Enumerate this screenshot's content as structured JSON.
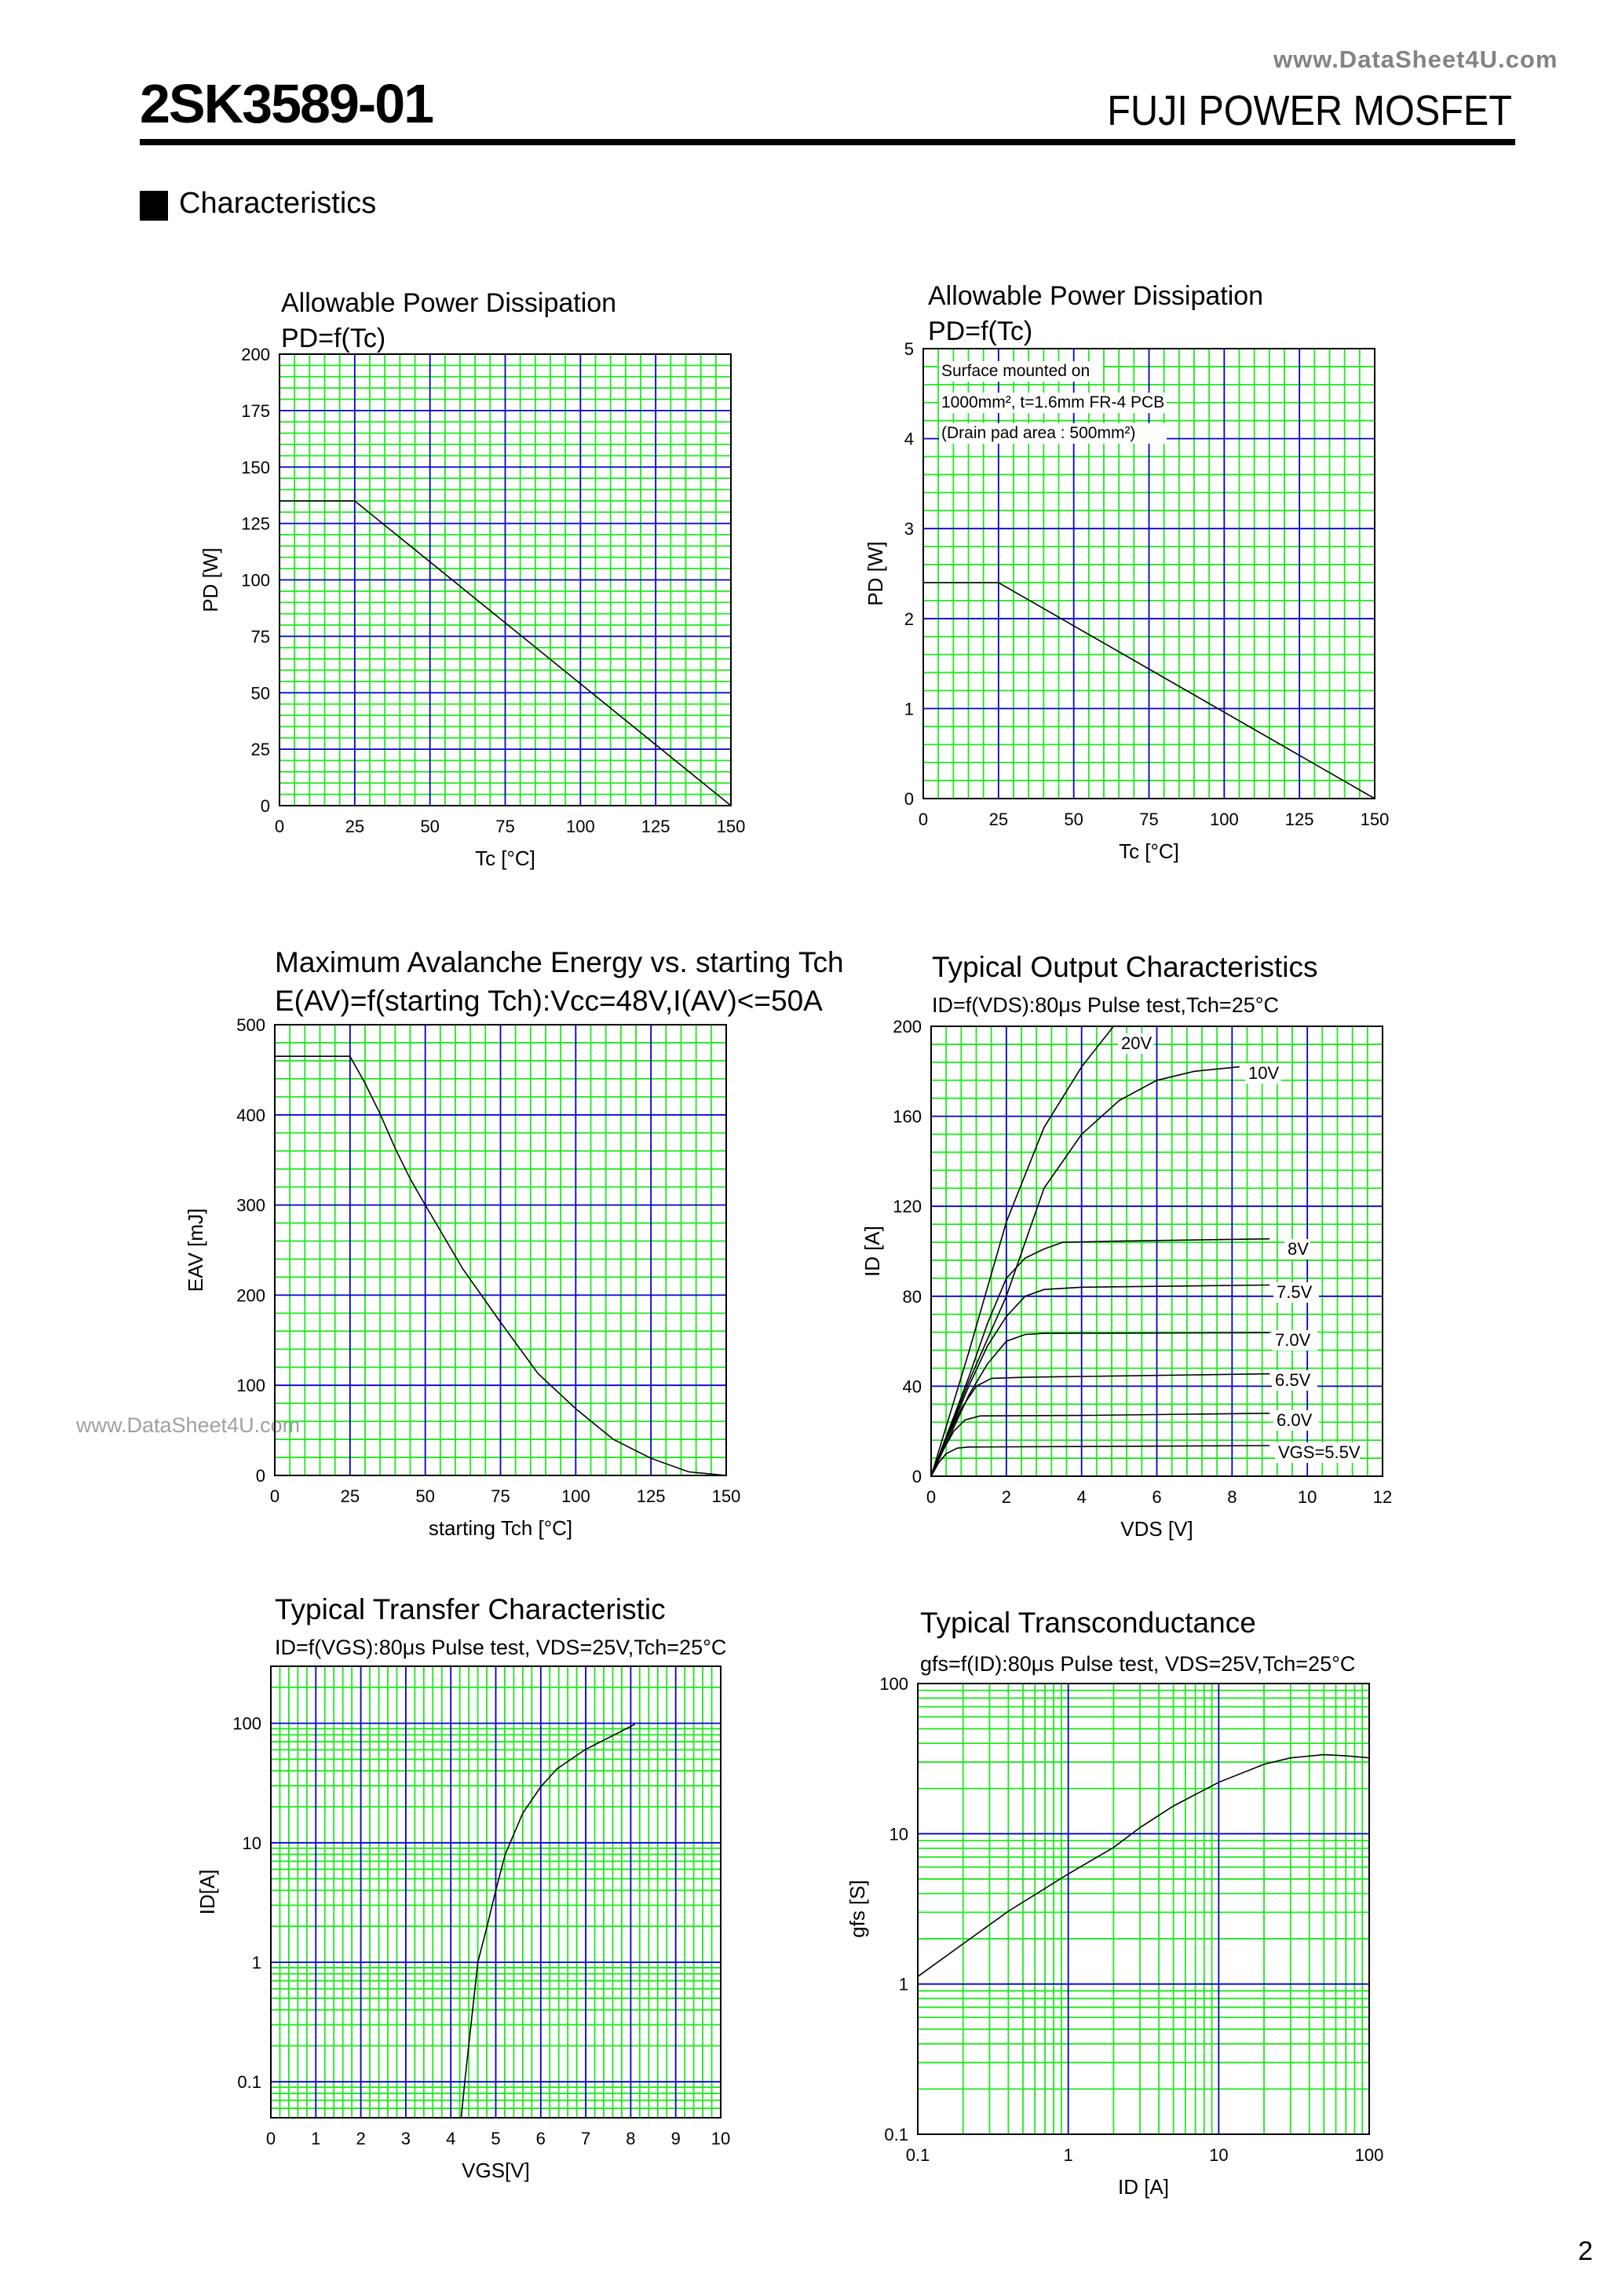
{
  "header": {
    "part_number": "2SK3589-01",
    "brand": "FUJI POWER MOSFET",
    "watermark": "www.DataSheet4U.com"
  },
  "section": {
    "title": "Characteristics"
  },
  "side_watermark": "www.DataSheet4U.com",
  "page_number": "2",
  "colors": {
    "minor_grid": "#1ee81e",
    "major_grid": "#0000d0",
    "curve": "#000000"
  },
  "chart_data": [
    {
      "type": "line",
      "title_lines": [
        "Allowable Power Dissipation",
        "PD=f(Tc)"
      ],
      "xlabel": "Tc [°C]",
      "ylabel": "PD [W]",
      "xlim": [
        0,
        150
      ],
      "ylim": [
        0,
        200
      ],
      "xscale": "linear",
      "yscale": "linear",
      "grid": true,
      "x_ticks": [
        "0",
        "25",
        "50",
        "75",
        "100",
        "125",
        "150"
      ],
      "y_ticks": [
        "0",
        "25",
        "50",
        "75",
        "100",
        "125",
        "150",
        "175",
        "200"
      ],
      "series": [
        {
          "x": [
            0,
            25,
            150
          ],
          "y": [
            135,
            135,
            0
          ]
        }
      ]
    },
    {
      "type": "line",
      "title_lines": [
        "Allowable Power Dissipation",
        "PD=f(Tc)"
      ],
      "xlabel": "Tc [°C]",
      "ylabel": "PD [W]",
      "xlim": [
        0,
        150
      ],
      "ylim": [
        0,
        5
      ],
      "xscale": "linear",
      "yscale": "linear",
      "grid": true,
      "x_ticks": [
        "0",
        "25",
        "50",
        "75",
        "100",
        "125",
        "150"
      ],
      "y_ticks": [
        "0",
        "1",
        "2",
        "3",
        "4",
        "5"
      ],
      "annotations": [
        "Surface mounted on",
        "1000mm², t=1.6mm FR-4 PCB",
        "(Drain pad area : 500mm²)"
      ],
      "series": [
        {
          "x": [
            0,
            25,
            150
          ],
          "y": [
            2.4,
            2.4,
            0
          ]
        }
      ]
    },
    {
      "type": "line",
      "title_lines": [
        "Maximum Avalanche Energy vs. starting Tch",
        "E(AV)=f(starting Tch):Vcc=48V,I(AV)<=50A"
      ],
      "xlabel": "starting Tch [°C]",
      "ylabel": "EAV [mJ]",
      "xlim": [
        0,
        150
      ],
      "ylim": [
        0,
        500
      ],
      "xscale": "linear",
      "yscale": "linear",
      "grid": true,
      "x_ticks": [
        "0",
        "25",
        "50",
        "75",
        "100",
        "125",
        "150"
      ],
      "y_ticks": [
        "0",
        "100",
        "200",
        "300",
        "400",
        "500"
      ],
      "series": [
        {
          "x": [
            0,
            25,
            30,
            35,
            40,
            45,
            50,
            62.5,
            75,
            87.5,
            100,
            112.5,
            125,
            137.5,
            150
          ],
          "y": [
            465,
            465,
            435,
            401,
            363,
            329,
            300,
            229,
            170,
            113,
            74,
            40,
            19,
            4,
            0
          ]
        }
      ]
    },
    {
      "type": "line",
      "title_lines": [
        "Typical Output Characteristics",
        "ID=f(VDS):80μs Pulse test,Tch=25°C"
      ],
      "xlabel": "VDS [V]",
      "ylabel": "ID [A]",
      "xlim": [
        0,
        12
      ],
      "ylim": [
        0,
        200
      ],
      "xscale": "linear",
      "yscale": "linear",
      "grid": true,
      "x_ticks": [
        "0",
        "2",
        "4",
        "6",
        "8",
        "10",
        "12"
      ],
      "y_ticks": [
        "0",
        "40",
        "80",
        "120",
        "160",
        "200"
      ],
      "series": [
        {
          "name": "20V",
          "x": [
            0,
            1,
            2,
            3,
            4,
            4.85
          ],
          "y": [
            0,
            55,
            113,
            155,
            182,
            200
          ]
        },
        {
          "name": "10V",
          "x": [
            0,
            1,
            2,
            3,
            4,
            5,
            6,
            7,
            8.2
          ],
          "y": [
            0,
            42,
            80,
            128,
            152,
            167,
            176,
            180,
            182
          ]
        },
        {
          "name": "8V",
          "x": [
            0,
            0.5,
            1,
            1.5,
            2,
            2.5,
            3,
            3.5,
            5,
            9
          ],
          "y": [
            0,
            22,
            44,
            68,
            88,
            97,
            101,
            104,
            104.5,
            105.5
          ]
        },
        {
          "name": "7.5V",
          "x": [
            0,
            0.5,
            1,
            1.5,
            2,
            2.5,
            3,
            4,
            9
          ],
          "y": [
            0,
            20,
            40,
            58,
            71,
            80,
            83,
            84,
            85
          ]
        },
        {
          "name": "7.0V",
          "x": [
            0,
            0.5,
            1,
            1.5,
            2,
            2.5,
            3,
            9
          ],
          "y": [
            0,
            18,
            36,
            50,
            60,
            63,
            63.5,
            63.8
          ]
        },
        {
          "name": "6.5V",
          "x": [
            0,
            0.4,
            0.8,
            1.2,
            1.6,
            2.5,
            9
          ],
          "y": [
            0,
            16,
            30,
            40,
            43.5,
            44,
            45.5
          ]
        },
        {
          "name": "6.0V",
          "x": [
            0,
            0.3,
            0.6,
            0.9,
            1.3,
            4,
            9
          ],
          "y": [
            0,
            11,
            20,
            25,
            26.8,
            27,
            28
          ]
        },
        {
          "name": "VGS=5.5V",
          "x": [
            0,
            0.2,
            0.4,
            0.7,
            1,
            9
          ],
          "y": [
            0,
            6,
            10,
            12.5,
            13,
            13.6
          ]
        }
      ]
    },
    {
      "type": "line",
      "title_lines": [
        "Typical Transfer Characteristic",
        "ID=f(VGS):80μs Pulse test, VDS=25V,Tch=25°C"
      ],
      "xlabel": "VGS[V]",
      "ylabel": "ID[A]",
      "xlim": [
        0,
        10
      ],
      "ylim": [
        0.05,
        300
      ],
      "xscale": "linear",
      "yscale": "log",
      "grid": true,
      "x_ticks": [
        "0",
        "1",
        "2",
        "3",
        "4",
        "5",
        "6",
        "7",
        "8",
        "9",
        "10"
      ],
      "y_ticks": [
        "0.1",
        "1",
        "10",
        "100"
      ],
      "series": [
        {
          "x": [
            4.23,
            4.31,
            4.6,
            4.8,
            5.0,
            5.21,
            5.32,
            5.6,
            6.0,
            6.36,
            6.98,
            8.09
          ],
          "y": [
            0.05,
            0.1,
            1,
            1.95,
            4.0,
            8.0,
            10,
            17.7,
            29.4,
            41.5,
            60,
            98
          ]
        }
      ]
    },
    {
      "type": "line",
      "title_lines": [
        "Typical Transconductance",
        "gfs=f(ID):80μs Pulse test, VDS=25V,Tch=25°C"
      ],
      "xlabel": "ID [A]",
      "ylabel": "gfs [S]",
      "xlim": [
        0.1,
        100
      ],
      "ylim": [
        0.1,
        100
      ],
      "xscale": "log",
      "yscale": "log",
      "grid": true,
      "x_ticks": [
        "0.1",
        "1",
        "10",
        "100"
      ],
      "y_ticks": [
        "0.1",
        "1",
        "10",
        "100"
      ],
      "series": [
        {
          "x": [
            0.1,
            0.2,
            0.4,
            1,
            2,
            3,
            5,
            10,
            20,
            30,
            50,
            70,
            100
          ],
          "y": [
            1.12,
            1.85,
            3.05,
            5.4,
            8.1,
            11,
            15.3,
            22,
            29,
            32,
            33.6,
            33,
            32
          ]
        }
      ]
    }
  ]
}
